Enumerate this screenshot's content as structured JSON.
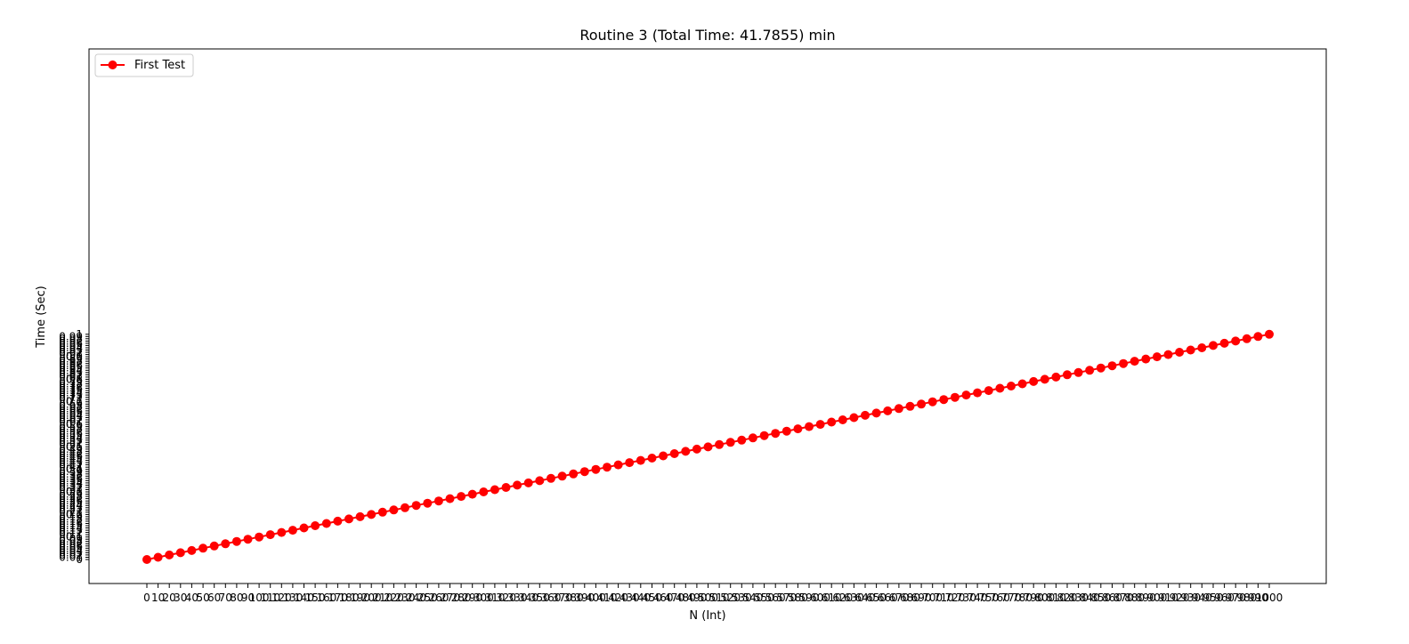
{
  "chart_data": {
    "type": "line",
    "title": "Routine 3 (Total Time: 41.7855) min",
    "xlabel": "N (Int)",
    "ylabel": "Time (Sec)",
    "legend_position": "top-left",
    "grid": false,
    "xlim": [
      0,
      1000
    ],
    "ylim": [
      0,
      2.16
    ],
    "series": [
      {
        "name": "First Test",
        "color": "#ff0000",
        "marker": "circle",
        "x_start": 0,
        "x_step": 10,
        "values": [
          0.0,
          0.01,
          0.02,
          0.03,
          0.04,
          0.05,
          0.06,
          0.07,
          0.08,
          0.09,
          0.1,
          0.11,
          0.12,
          0.13,
          0.14,
          0.15,
          0.16,
          0.17,
          0.18,
          0.19,
          0.2,
          0.21,
          0.22,
          0.23,
          0.24,
          0.25,
          0.26,
          0.27,
          0.28,
          0.29,
          0.3,
          0.31,
          0.32,
          0.33,
          0.34,
          0.35,
          0.36,
          0.37,
          0.38,
          0.39,
          0.4,
          0.41,
          0.42,
          0.43,
          0.44,
          0.45,
          0.46,
          0.47,
          0.48,
          0.49,
          0.5,
          0.51,
          0.52,
          0.53,
          0.54,
          0.55,
          0.56,
          0.57,
          0.58,
          0.59,
          0.6,
          0.61,
          0.62,
          0.63,
          0.64,
          0.65,
          0.66,
          0.67,
          0.68,
          0.69,
          0.7,
          0.71,
          0.72,
          0.73,
          0.74,
          0.75,
          0.76,
          0.77,
          0.78,
          0.79,
          0.8,
          0.81,
          0.82,
          0.83,
          0.84,
          0.85,
          0.86,
          0.87,
          0.88,
          0.89,
          0.9,
          0.91,
          0.92,
          0.93,
          0.94,
          0.95,
          0.96,
          0.97,
          0.98,
          0.99,
          1.0
        ]
      }
    ]
  }
}
